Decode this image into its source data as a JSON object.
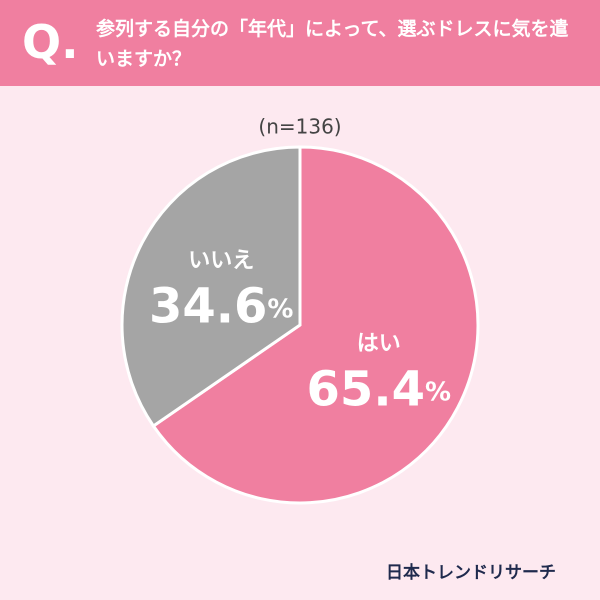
{
  "chart_data": {
    "type": "pie",
    "question_mark": "Q.",
    "title": "参列する自分の「年代」によって、選ぶドレスに気を遣いますか？",
    "subtitle": "(n=136)",
    "categories": [
      "はい",
      "いいえ"
    ],
    "values": [
      65.4,
      34.6
    ],
    "value_labels": [
      "65.4%",
      "34.6%"
    ],
    "colors": [
      "#f07fa0",
      "#a5a5a5"
    ],
    "source": "日本トレンドリサーチ"
  }
}
